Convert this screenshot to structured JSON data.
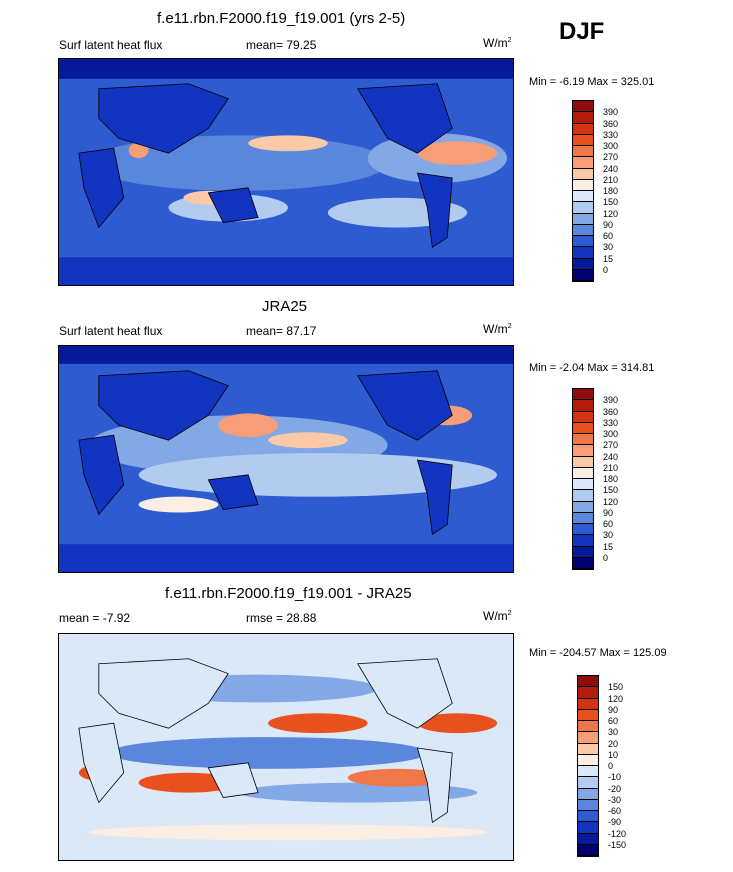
{
  "season": "DJF",
  "panels": [
    {
      "title": "f.e11.rbn.F2000.f19_f19.001 (yrs 2-5)",
      "left_label": "Surf latent heat flux",
      "mean_label": "mean=  79.25",
      "units_base": "W/m",
      "units_exp": "2",
      "minmax": "Min =  -6.19 Max = 325.01",
      "colorbar": {
        "labels": [
          "390",
          "360",
          "330",
          "300",
          "270",
          "240",
          "210",
          "180",
          "150",
          "120",
          "90",
          "60",
          "30",
          "15",
          "0"
        ],
        "colors": [
          "#8c0d0d",
          "#b31b0c",
          "#d4330d",
          "#e8501e",
          "#f07848",
          "#f69e78",
          "#fbc9a8",
          "#fdeee3",
          "#dbe8f8",
          "#b2ccf0",
          "#82a8e6",
          "#5a86dc",
          "#2e5bd0",
          "#1234c0",
          "#071a9a",
          "#000070"
        ]
      }
    },
    {
      "title": "JRA25",
      "left_label": "Surf latent heat flux",
      "mean_label": "mean=  87.17",
      "units_base": "W/m",
      "units_exp": "2",
      "minmax": "Min =  -2.04 Max = 314.81",
      "colorbar": {
        "labels": [
          "390",
          "360",
          "330",
          "300",
          "270",
          "240",
          "210",
          "180",
          "150",
          "120",
          "90",
          "60",
          "30",
          "15",
          "0"
        ],
        "colors": [
          "#8c0d0d",
          "#b31b0c",
          "#d4330d",
          "#e8501e",
          "#f07848",
          "#f69e78",
          "#fbc9a8",
          "#fdeee3",
          "#dbe8f8",
          "#b2ccf0",
          "#82a8e6",
          "#5a86dc",
          "#2e5bd0",
          "#1234c0",
          "#071a9a",
          "#000070"
        ]
      }
    },
    {
      "title": "f.e11.rbn.F2000.f19_f19.001 - JRA25",
      "left_label": "mean =  -7.92",
      "mean_label": "rmse =  28.88",
      "units_base": "W/m",
      "units_exp": "2",
      "minmax": "Min = -204.57 Max = 125.09",
      "colorbar": {
        "labels": [
          "150",
          "120",
          "90",
          "60",
          "30",
          "20",
          "10",
          "0",
          "-10",
          "-20",
          "-30",
          "-60",
          "-90",
          "-120",
          "-150"
        ],
        "colors": [
          "#8c0d0d",
          "#b31b0c",
          "#d4330d",
          "#e8501e",
          "#f07848",
          "#f69e78",
          "#fbc9a8",
          "#fdeee3",
          "#dbe8f8",
          "#b2ccf0",
          "#82a8e6",
          "#5a86dc",
          "#2e5bd0",
          "#1234c0",
          "#071a9a",
          "#000070"
        ]
      }
    }
  ]
}
